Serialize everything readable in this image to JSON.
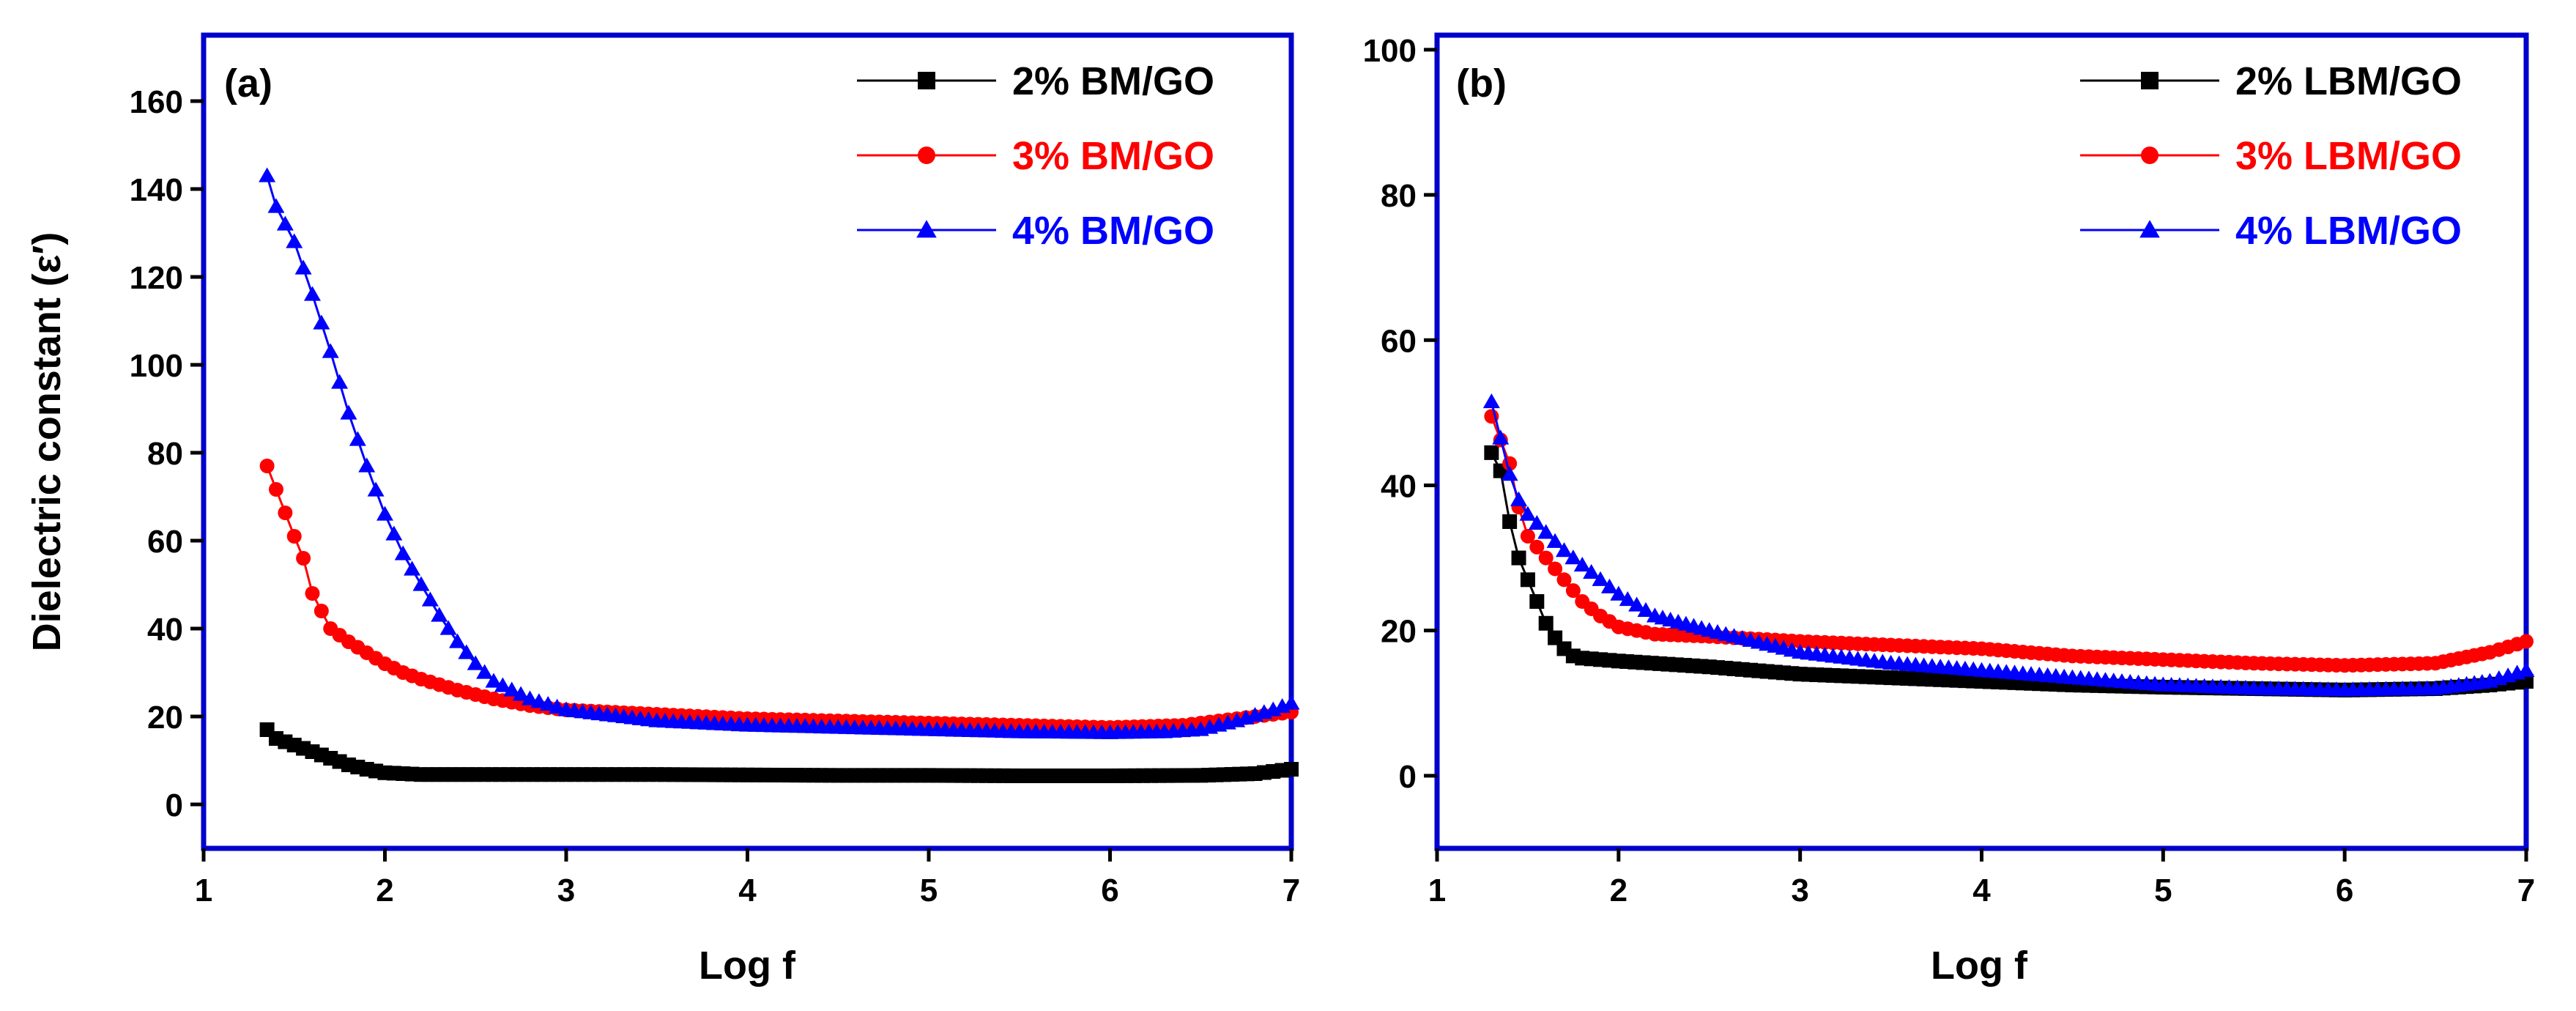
{
  "chart_data": [
    {
      "type": "line",
      "panel_label": "(a)",
      "xlabel": "Log f",
      "ylabel": "Dielectric constant (ε′)",
      "xlim": [
        1,
        7
      ],
      "ylim": [
        -10,
        175
      ],
      "xticks": [
        1,
        2,
        3,
        4,
        5,
        6,
        7
      ],
      "yticks": [
        0,
        20,
        40,
        60,
        80,
        100,
        120,
        140,
        160
      ],
      "legend_position": "top-right",
      "series": [
        {
          "name": "2% BM/GO",
          "color": "#000000",
          "marker": "square",
          "x": [
            1.35,
            1.4,
            1.5,
            1.6,
            1.7,
            1.8,
            1.9,
            2.0,
            2.2,
            2.5,
            3.0,
            3.5,
            4.0,
            4.5,
            5.0,
            5.5,
            6.0,
            6.5,
            6.8,
            7.0
          ],
          "y": [
            17,
            15,
            13.5,
            12,
            10.5,
            9,
            8,
            7.2,
            6.8,
            6.8,
            6.8,
            6.8,
            6.7,
            6.6,
            6.6,
            6.5,
            6.5,
            6.6,
            7,
            8
          ]
        },
        {
          "name": "3% BM/GO",
          "color": "#ff0000",
          "marker": "circle",
          "x": [
            1.35,
            1.5,
            1.55,
            1.6,
            1.65,
            1.7,
            1.8,
            1.9,
            2.0,
            2.1,
            2.2,
            2.4,
            2.6,
            2.8,
            3.0,
            3.5,
            4.0,
            4.5,
            5.0,
            5.5,
            6.0,
            6.4,
            6.6,
            6.8,
            7.0
          ],
          "y": [
            77,
            61,
            56,
            48,
            44,
            40,
            37,
            34.5,
            32,
            30,
            28.5,
            26,
            24,
            22.5,
            21.5,
            20.5,
            19.5,
            19,
            18.5,
            18,
            17.5,
            18,
            19,
            20,
            21
          ]
        },
        {
          "name": "4% BM/GO",
          "color": "#0000ff",
          "marker": "triangle",
          "x": [
            1.35,
            1.4,
            1.5,
            1.6,
            1.7,
            1.8,
            1.9,
            2.0,
            2.1,
            2.2,
            2.3,
            2.4,
            2.5,
            2.6,
            2.8,
            3.0,
            3.5,
            4.0,
            4.5,
            5.0,
            5.5,
            6.0,
            6.3,
            6.5,
            6.7,
            6.9,
            7.0
          ],
          "y": [
            143,
            136,
            128,
            116,
            103,
            89,
            77,
            66,
            57,
            50,
            43,
            37,
            32,
            28,
            24,
            21.5,
            19,
            18,
            17.5,
            17,
            16.5,
            16.3,
            16.5,
            17,
            19,
            21.5,
            23
          ]
        }
      ]
    },
    {
      "type": "line",
      "panel_label": "(b)",
      "xlabel": "Log f",
      "ylabel": "",
      "xlim": [
        1,
        7
      ],
      "ylim": [
        -10,
        102
      ],
      "xticks": [
        1,
        2,
        3,
        4,
        5,
        6,
        7
      ],
      "yticks": [
        0,
        20,
        40,
        60,
        80,
        100
      ],
      "legend_position": "top-right",
      "series": [
        {
          "name": "2% LBM/GO",
          "color": "#000000",
          "marker": "square",
          "x": [
            1.3,
            1.35,
            1.4,
            1.45,
            1.5,
            1.55,
            1.6,
            1.65,
            1.7,
            1.75,
            1.8,
            1.9,
            2.0,
            2.5,
            3.0,
            3.5,
            4.0,
            4.5,
            5.0,
            5.5,
            6.0,
            6.5,
            6.8,
            7.0
          ],
          "y": [
            44.5,
            42,
            35,
            30,
            27,
            24,
            21,
            19,
            17.5,
            16.5,
            16.2,
            16,
            15.8,
            15,
            14,
            13.5,
            13,
            12.5,
            12.2,
            12,
            11.8,
            12,
            12.5,
            13
          ]
        },
        {
          "name": "3% LBM/GO",
          "color": "#ff0000",
          "marker": "circle",
          "x": [
            1.3,
            1.4,
            1.45,
            1.5,
            1.6,
            1.7,
            1.8,
            1.9,
            2.0,
            2.2,
            2.5,
            3.0,
            3.5,
            4.0,
            4.5,
            5.0,
            5.5,
            6.0,
            6.5,
            6.8,
            7.0
          ],
          "y": [
            49.5,
            43,
            37,
            33,
            30,
            27,
            24,
            22,
            20.5,
            19.5,
            19.2,
            18.5,
            18,
            17.5,
            16.5,
            16,
            15.5,
            15.2,
            15.5,
            17,
            18.5
          ]
        },
        {
          "name": "4% LBM/GO",
          "color": "#0000ff",
          "marker": "triangle",
          "x": [
            1.3,
            1.35,
            1.4,
            1.45,
            1.5,
            1.6,
            1.7,
            1.8,
            1.9,
            2.0,
            2.2,
            2.5,
            3.0,
            3.5,
            4.0,
            4.5,
            5.0,
            5.5,
            6.0,
            6.5,
            6.8,
            7.0
          ],
          "y": [
            51.5,
            46.5,
            41.5,
            38,
            36,
            33.5,
            31,
            29,
            27,
            25,
            22,
            20,
            17,
            15.5,
            14.5,
            13.5,
            12.5,
            12,
            11.8,
            12,
            13,
            14.5
          ]
        }
      ]
    }
  ]
}
